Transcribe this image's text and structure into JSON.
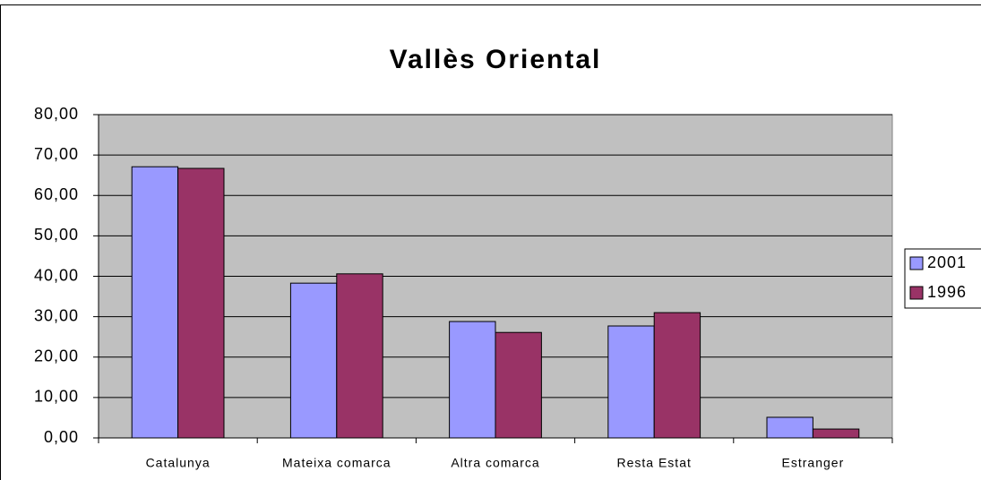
{
  "chart_data": {
    "type": "bar",
    "title": "Vallès Oriental",
    "categories": [
      "Catalunya",
      "Mateixa comarca",
      "Altra comarca",
      "Resta Estat",
      "Estranger"
    ],
    "series": [
      {
        "name": "2001",
        "color": "#9999ff",
        "values": [
          67.1,
          38.3,
          28.8,
          27.7,
          5.1
        ]
      },
      {
        "name": "1996",
        "color": "#993366",
        "values": [
          66.7,
          40.6,
          26.1,
          31.0,
          2.2
        ]
      }
    ],
    "ylim": [
      0,
      80
    ],
    "yticks": [
      {
        "value": 0,
        "label": "0,00"
      },
      {
        "value": 10,
        "label": "10,00"
      },
      {
        "value": 20,
        "label": "20,00"
      },
      {
        "value": 30,
        "label": "30,00"
      },
      {
        "value": 40,
        "label": "40,00"
      },
      {
        "value": 50,
        "label": "50,00"
      },
      {
        "value": 60,
        "label": "60,00"
      },
      {
        "value": 70,
        "label": "70,00"
      },
      {
        "value": 80,
        "label": "80,00"
      }
    ],
    "grid": true,
    "legend": "right"
  }
}
